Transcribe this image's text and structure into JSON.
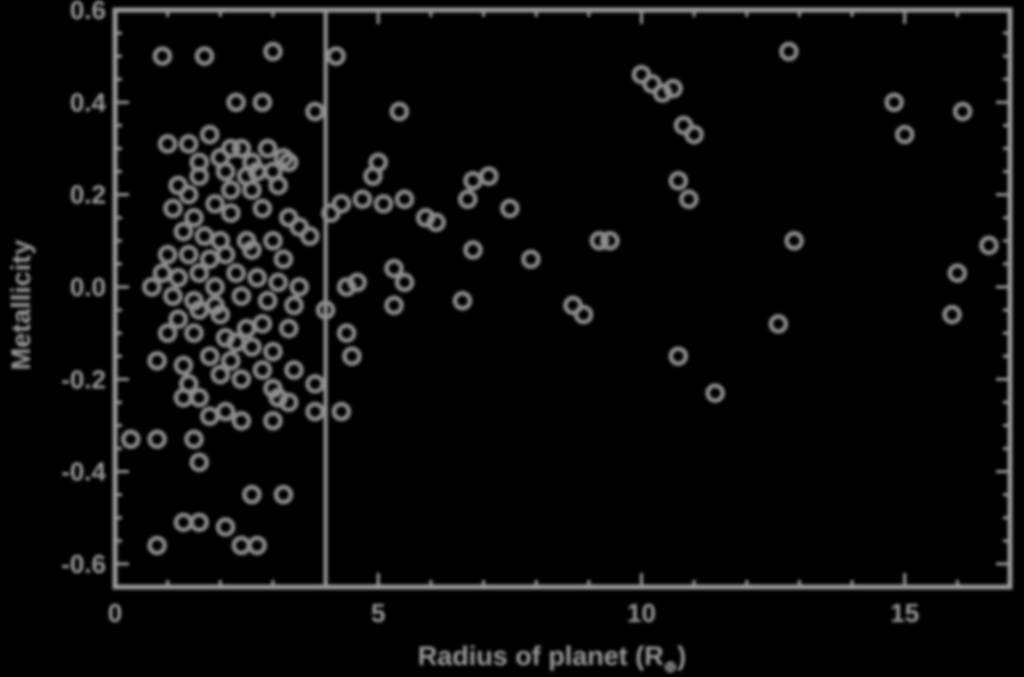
{
  "chart_data": {
    "type": "scatter",
    "title": "",
    "xlabel": "Radius of planet (R",
    "xlabel_sub": "⊕",
    "xlabel_close": ")",
    "ylabel": "Metallicity",
    "xlim": [
      0,
      17
    ],
    "ylim": [
      -0.65,
      0.6
    ],
    "xticks": [
      0,
      5,
      10,
      15
    ],
    "yticks": [
      -0.6,
      -0.4,
      -0.2,
      0.0,
      0.2,
      0.4,
      0.6
    ],
    "ytick_labels": [
      "-0.6",
      "-0.4",
      "-0.2",
      "0.0",
      "0.2",
      "0.4",
      "0.6"
    ],
    "xtick_labels": [
      "0",
      "5",
      "10",
      "15"
    ],
    "vline_x": 4.0,
    "grid": false,
    "colors": {
      "background": "#000000",
      "axes": "#9a9a9a",
      "points": "#8c8c8c"
    },
    "points": [
      [
        0.9,
        0.5
      ],
      [
        1.7,
        0.5
      ],
      [
        3.0,
        0.51
      ],
      [
        2.3,
        0.4
      ],
      [
        2.8,
        0.4
      ],
      [
        3.8,
        0.38
      ],
      [
        1.0,
        0.31
      ],
      [
        1.4,
        0.31
      ],
      [
        1.8,
        0.33
      ],
      [
        2.0,
        0.28
      ],
      [
        2.2,
        0.3
      ],
      [
        2.4,
        0.3
      ],
      [
        2.6,
        0.27
      ],
      [
        2.9,
        0.3
      ],
      [
        3.2,
        0.28
      ],
      [
        1.6,
        0.27
      ],
      [
        2.1,
        0.25
      ],
      [
        2.5,
        0.24
      ],
      [
        2.7,
        0.25
      ],
      [
        3.0,
        0.25
      ],
      [
        3.3,
        0.27
      ],
      [
        1.2,
        0.22
      ],
      [
        1.4,
        0.2
      ],
      [
        1.6,
        0.24
      ],
      [
        2.2,
        0.21
      ],
      [
        2.6,
        0.21
      ],
      [
        3.1,
        0.22
      ],
      [
        1.1,
        0.17
      ],
      [
        1.5,
        0.15
      ],
      [
        1.9,
        0.18
      ],
      [
        2.2,
        0.16
      ],
      [
        2.8,
        0.17
      ],
      [
        3.3,
        0.15
      ],
      [
        1.3,
        0.12
      ],
      [
        1.7,
        0.11
      ],
      [
        2.0,
        0.1
      ],
      [
        2.5,
        0.1
      ],
      [
        3.0,
        0.1
      ],
      [
        3.5,
        0.13
      ],
      [
        3.7,
        0.11
      ],
      [
        1.0,
        0.07
      ],
      [
        1.4,
        0.07
      ],
      [
        1.8,
        0.06
      ],
      [
        2.1,
        0.07
      ],
      [
        2.6,
        0.08
      ],
      [
        3.2,
        0.06
      ],
      [
        0.9,
        0.03
      ],
      [
        1.2,
        0.02
      ],
      [
        1.6,
        0.03
      ],
      [
        1.9,
        0.0
      ],
      [
        2.3,
        0.03
      ],
      [
        2.7,
        0.02
      ],
      [
        3.1,
        0.01
      ],
      [
        3.5,
        0.0
      ],
      [
        0.7,
        0.0
      ],
      [
        1.1,
        -0.02
      ],
      [
        1.5,
        -0.03
      ],
      [
        1.9,
        -0.04
      ],
      [
        2.4,
        -0.02
      ],
      [
        2.9,
        -0.03
      ],
      [
        3.4,
        -0.04
      ],
      [
        1.2,
        -0.07
      ],
      [
        1.6,
        -0.05
      ],
      [
        2.0,
        -0.06
      ],
      [
        2.5,
        -0.09
      ],
      [
        2.8,
        -0.08
      ],
      [
        3.3,
        -0.09
      ],
      [
        1.0,
        -0.1
      ],
      [
        1.5,
        -0.1
      ],
      [
        2.1,
        -0.11
      ],
      [
        2.3,
        -0.12
      ],
      [
        2.6,
        -0.13
      ],
      [
        3.0,
        -0.14
      ],
      [
        0.8,
        -0.16
      ],
      [
        1.3,
        -0.17
      ],
      [
        1.8,
        -0.15
      ],
      [
        2.2,
        -0.16
      ],
      [
        2.8,
        -0.18
      ],
      [
        3.4,
        -0.18
      ],
      [
        1.4,
        -0.21
      ],
      [
        2.0,
        -0.19
      ],
      [
        2.4,
        -0.2
      ],
      [
        3.0,
        -0.22
      ],
      [
        3.8,
        -0.21
      ],
      [
        1.3,
        -0.24
      ],
      [
        1.6,
        -0.24
      ],
      [
        3.1,
        -0.24
      ],
      [
        3.3,
        -0.25
      ],
      [
        1.8,
        -0.28
      ],
      [
        2.1,
        -0.27
      ],
      [
        2.4,
        -0.29
      ],
      [
        3.0,
        -0.29
      ],
      [
        3.8,
        -0.27
      ],
      [
        0.3,
        -0.33
      ],
      [
        0.8,
        -0.33
      ],
      [
        1.5,
        -0.33
      ],
      [
        1.6,
        -0.38
      ],
      [
        2.6,
        -0.45
      ],
      [
        3.2,
        -0.45
      ],
      [
        1.3,
        -0.51
      ],
      [
        1.6,
        -0.51
      ],
      [
        2.1,
        -0.52
      ],
      [
        0.8,
        -0.56
      ],
      [
        2.4,
        -0.56
      ],
      [
        2.7,
        -0.56
      ],
      [
        4.1,
        0.16
      ],
      [
        4.2,
        0.5
      ],
      [
        4.0,
        -0.05
      ],
      [
        4.3,
        0.18
      ],
      [
        4.4,
        -0.1
      ],
      [
        4.5,
        -0.15
      ],
      [
        4.3,
        -0.27
      ],
      [
        4.4,
        0.0
      ],
      [
        4.6,
        0.01
      ],
      [
        4.7,
        0.19
      ],
      [
        4.9,
        0.24
      ],
      [
        5.0,
        0.27
      ],
      [
        5.1,
        0.18
      ],
      [
        5.3,
        0.04
      ],
      [
        5.3,
        -0.04
      ],
      [
        5.4,
        0.38
      ],
      [
        5.5,
        0.01
      ],
      [
        5.5,
        0.19
      ],
      [
        5.9,
        0.15
      ],
      [
        6.1,
        0.14
      ],
      [
        6.6,
        -0.03
      ],
      [
        6.7,
        0.19
      ],
      [
        6.8,
        0.08
      ],
      [
        6.8,
        0.23
      ],
      [
        7.1,
        0.24
      ],
      [
        7.5,
        0.17
      ],
      [
        7.9,
        0.06
      ],
      [
        8.7,
        -0.04
      ],
      [
        8.9,
        -0.06
      ],
      [
        9.2,
        0.1
      ],
      [
        9.4,
        0.1
      ],
      [
        10.0,
        0.46
      ],
      [
        10.2,
        0.44
      ],
      [
        10.4,
        0.42
      ],
      [
        10.6,
        0.43
      ],
      [
        10.7,
        0.23
      ],
      [
        10.8,
        0.35
      ],
      [
        10.9,
        0.19
      ],
      [
        11.0,
        0.33
      ],
      [
        10.7,
        -0.15
      ],
      [
        11.4,
        -0.23
      ],
      [
        12.6,
        -0.08
      ],
      [
        12.8,
        0.51
      ],
      [
        12.9,
        0.1
      ],
      [
        14.8,
        0.4
      ],
      [
        15.0,
        0.33
      ],
      [
        15.9,
        -0.06
      ],
      [
        16.0,
        0.03
      ],
      [
        16.1,
        0.38
      ],
      [
        16.6,
        0.09
      ]
    ]
  }
}
